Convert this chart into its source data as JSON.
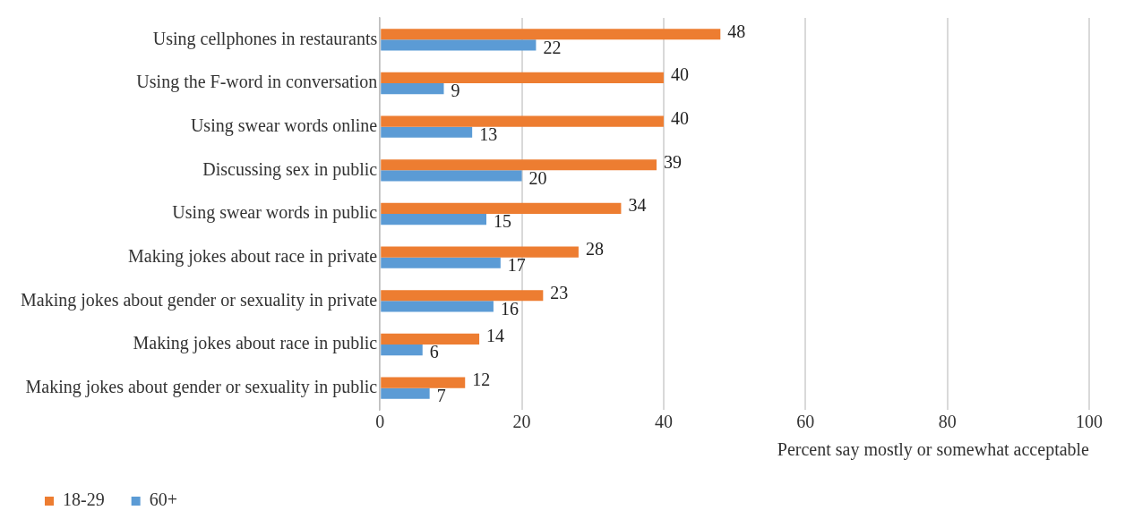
{
  "chart_data": {
    "type": "bar",
    "orientation": "horizontal",
    "xlabel": "Percent say mostly or somewhat acceptable",
    "categories": [
      "Using cellphones in restaurants",
      "Using the F-word in conversation",
      "Using swear words online",
      "Discussing sex in public",
      "Using swear words in public",
      "Making jokes about race in private",
      "Making jokes about gender or sexuality in private",
      "Making jokes about race in public",
      "Making jokes about gender or sexuality in public"
    ],
    "series": [
      {
        "name": "18-29",
        "color": "#ed7d31",
        "values": [
          48,
          40,
          40,
          39,
          34,
          28,
          23,
          14,
          12
        ]
      },
      {
        "name": "60+",
        "color": "#5b9bd5",
        "values": [
          22,
          9,
          13,
          20,
          15,
          17,
          16,
          6,
          7
        ]
      }
    ],
    "xlim": [
      0,
      100
    ],
    "xticks": [
      0,
      20,
      40,
      60,
      80,
      100
    ],
    "grid": "x",
    "legend": "bottom left",
    "data_labels": true
  }
}
